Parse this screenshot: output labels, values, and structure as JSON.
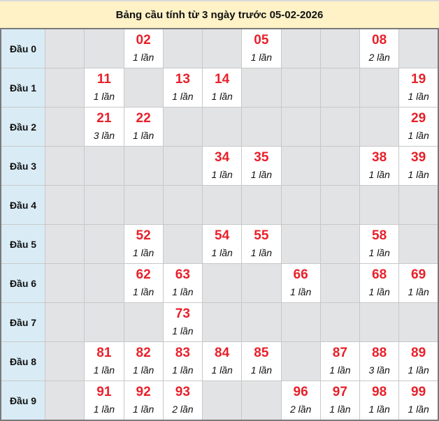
{
  "title": "Bảng cầu tính từ 3 ngày trước 05-02-2026",
  "colors": {
    "number": "#e8202a",
    "header_bg": "#fff2c6",
    "row_label_bg": "#d9ecf6",
    "empty_cell_bg": "#e2e3e5"
  },
  "rows": [
    {
      "label": "Đầu 0",
      "cells": [
        null,
        null,
        {
          "num": "02",
          "count": "1 lần"
        },
        null,
        null,
        {
          "num": "05",
          "count": "1 lần"
        },
        null,
        null,
        {
          "num": "08",
          "count": "2 lần"
        },
        null
      ]
    },
    {
      "label": "Đầu 1",
      "cells": [
        null,
        {
          "num": "11",
          "count": "1 lần"
        },
        null,
        {
          "num": "13",
          "count": "1 lần"
        },
        {
          "num": "14",
          "count": "1 lần"
        },
        null,
        null,
        null,
        null,
        {
          "num": "19",
          "count": "1 lần"
        }
      ]
    },
    {
      "label": "Đầu 2",
      "cells": [
        null,
        {
          "num": "21",
          "count": "3 lần"
        },
        {
          "num": "22",
          "count": "1 lần"
        },
        null,
        null,
        null,
        null,
        null,
        null,
        {
          "num": "29",
          "count": "1 lần"
        }
      ]
    },
    {
      "label": "Đầu 3",
      "cells": [
        null,
        null,
        null,
        null,
        {
          "num": "34",
          "count": "1 lần"
        },
        {
          "num": "35",
          "count": "1 lần"
        },
        null,
        null,
        {
          "num": "38",
          "count": "1 lần"
        },
        {
          "num": "39",
          "count": "1 lần"
        }
      ]
    },
    {
      "label": "Đầu 4",
      "cells": [
        null,
        null,
        null,
        null,
        null,
        null,
        null,
        null,
        null,
        null
      ]
    },
    {
      "label": "Đầu 5",
      "cells": [
        null,
        null,
        {
          "num": "52",
          "count": "1 lần"
        },
        null,
        {
          "num": "54",
          "count": "1 lần"
        },
        {
          "num": "55",
          "count": "1 lần"
        },
        null,
        null,
        {
          "num": "58",
          "count": "1 lần"
        },
        null
      ]
    },
    {
      "label": "Đầu 6",
      "cells": [
        null,
        null,
        {
          "num": "62",
          "count": "1 lần"
        },
        {
          "num": "63",
          "count": "1 lần"
        },
        null,
        null,
        {
          "num": "66",
          "count": "1 lần"
        },
        null,
        {
          "num": "68",
          "count": "1 lần"
        },
        {
          "num": "69",
          "count": "1 lần"
        }
      ]
    },
    {
      "label": "Đầu 7",
      "cells": [
        null,
        null,
        null,
        {
          "num": "73",
          "count": "1 lần"
        },
        null,
        null,
        null,
        null,
        null,
        null
      ]
    },
    {
      "label": "Đầu 8",
      "cells": [
        null,
        {
          "num": "81",
          "count": "1 lần"
        },
        {
          "num": "82",
          "count": "1 lần"
        },
        {
          "num": "83",
          "count": "1 lần"
        },
        {
          "num": "84",
          "count": "1 lần"
        },
        {
          "num": "85",
          "count": "1 lần"
        },
        null,
        {
          "num": "87",
          "count": "1 lần"
        },
        {
          "num": "88",
          "count": "3 lần"
        },
        {
          "num": "89",
          "count": "1 lần"
        }
      ]
    },
    {
      "label": "Đầu 9",
      "cells": [
        null,
        {
          "num": "91",
          "count": "1 lần"
        },
        {
          "num": "92",
          "count": "1 lần"
        },
        {
          "num": "93",
          "count": "2 lần"
        },
        null,
        null,
        {
          "num": "96",
          "count": "2 lần"
        },
        {
          "num": "97",
          "count": "1 lần"
        },
        {
          "num": "98",
          "count": "1 lần"
        },
        {
          "num": "99",
          "count": "1 lần"
        }
      ]
    }
  ]
}
